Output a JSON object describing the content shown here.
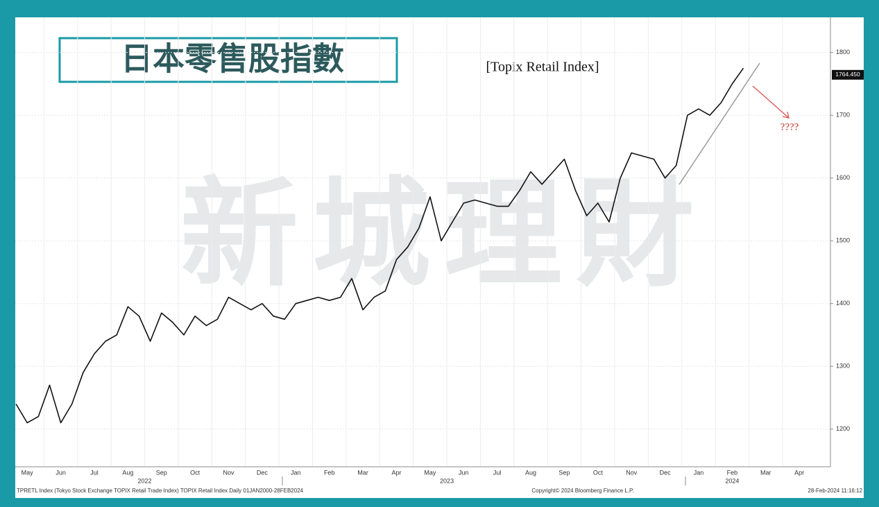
{
  "chart_data": {
    "type": "line",
    "title": "日本零售股指數",
    "subtitle": "[Topix Retail Index]",
    "annotation": "????",
    "watermark": "新城理財",
    "categories": [
      null,
      "May",
      null,
      null,
      "Jun",
      null,
      null,
      "Jul",
      null,
      null,
      "Aug",
      null,
      null,
      "Sep",
      null,
      null,
      "Oct",
      null,
      null,
      "Nov",
      null,
      null,
      "Dec",
      null,
      null,
      "Jan",
      null,
      null,
      "Feb",
      null,
      null,
      "Mar",
      null,
      null,
      "Apr",
      null,
      null,
      "May",
      null,
      null,
      "Jun",
      null,
      null,
      "Jul",
      null,
      null,
      "Aug",
      null,
      null,
      "Sep",
      null,
      null,
      "Oct",
      null,
      null,
      "Nov",
      null,
      null,
      "Dec",
      null,
      null,
      "Jan",
      null,
      null,
      "Feb",
      null,
      null,
      "Mar",
      null,
      null,
      "Apr",
      null
    ],
    "years": [
      "2022",
      "2023",
      "2024"
    ],
    "series": [
      {
        "name": "TPRETL Index",
        "color": "#111111",
        "values": [
          1240,
          1210,
          1220,
          1270,
          1210,
          1240,
          1290,
          1320,
          1340,
          1350,
          1395,
          1380,
          1340,
          1385,
          1370,
          1350,
          1380,
          1365,
          1375,
          1410,
          1400,
          1390,
          1400,
          1380,
          1375,
          1400,
          1405,
          1410,
          1405,
          1410,
          1440,
          1390,
          1410,
          1420,
          1470,
          1490,
          1520,
          1570,
          1500,
          1530,
          1560,
          1565,
          1560,
          1555,
          1555,
          1580,
          1610,
          1590,
          1610,
          1630,
          1580,
          1540,
          1560,
          1530,
          1600,
          1640,
          1635,
          1630,
          1600,
          1620,
          1700,
          1710,
          1700,
          1720,
          1750,
          1775,
          null,
          null,
          null,
          null,
          null,
          null
        ]
      }
    ],
    "last_value": {
      "value": 1764.45,
      "label": "1764.450"
    },
    "ylim": [
      1140,
      1856
    ],
    "yticks": [
      1200,
      1300,
      1400,
      1500,
      1600,
      1700,
      1800
    ],
    "grid": true,
    "footer_left": "TPRETL Index (Tokyo Stock Exchange TOPIX Retail Trade Index) TOPIX Retail Index  Daily 01JAN2000-28FEB2024",
    "footer_mid": "Copyright© 2024 Bloomberg Finance L.P.",
    "footer_right": "28-Feb-2024 11:16:12"
  }
}
